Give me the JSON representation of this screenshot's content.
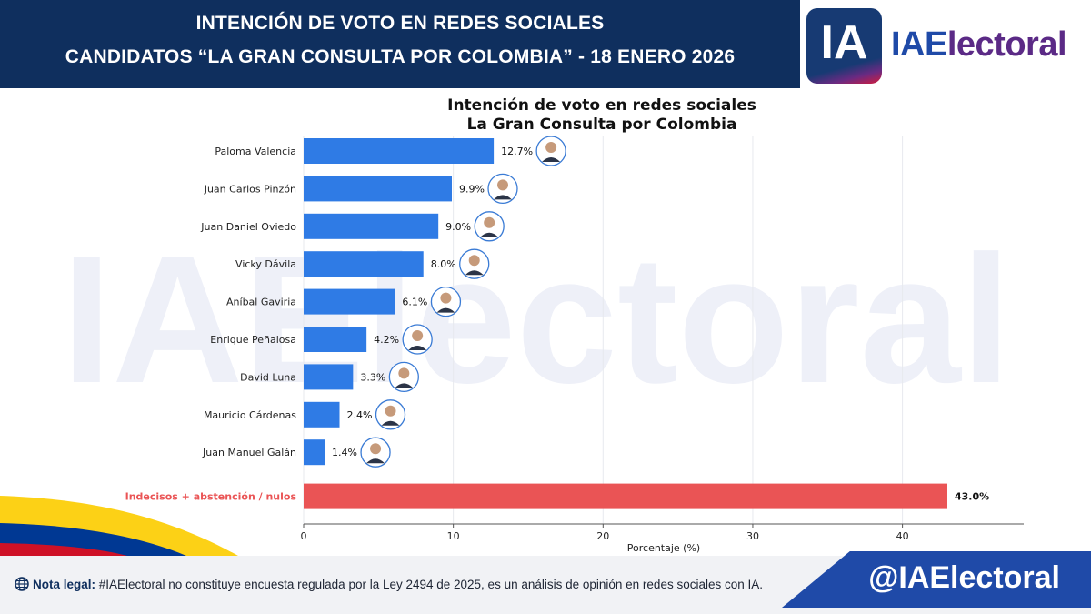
{
  "header": {
    "line1": "INTENCIÓN DE VOTO EN REDES SOCIALES",
    "line2": "CANDIDATOS “LA GRAN CONSULTA POR COLOMBIA” - 18 ENERO 2026"
  },
  "logo": {
    "mark": "IA",
    "text_a": "IAE",
    "text_b": "lectoral"
  },
  "watermark": "IAElectoral",
  "colors": {
    "navy": "#0f2f5e",
    "bar": "#2f7be5",
    "highlight": "#ea5455",
    "brand_blue": "#1f4aa8",
    "brand_purple": "#5b2a86"
  },
  "chart_data": {
    "type": "bar",
    "orientation": "horizontal",
    "title_line1": "Intención de voto en redes sociales",
    "title_line2": "La Gran Consulta por Colombia",
    "xlabel": "Porcentaje (%)",
    "ylabel": "",
    "xlim": [
      0,
      48
    ],
    "xticks": [
      0,
      10,
      20,
      30,
      40
    ],
    "grid": true,
    "categories": [
      "Paloma Valencia",
      "Juan Carlos Pinzón",
      "Juan Daniel Oviedo",
      "Vicky Dávila",
      "Aníbal Gaviria",
      "Enrique Peñalosa",
      "David Luna",
      "Mauricio Cárdenas",
      "Juan Manuel Galán",
      "Indecisos + abstención / nulos"
    ],
    "values": [
      12.7,
      9.9,
      9.0,
      8.0,
      6.1,
      4.2,
      3.3,
      2.4,
      1.4,
      43.0
    ],
    "value_labels": [
      "12.7%",
      "9.9%",
      "9.0%",
      "8.0%",
      "6.1%",
      "4.2%",
      "3.3%",
      "2.4%",
      "1.4%",
      "43.0%"
    ],
    "highlight_index": 9
  },
  "footer": {
    "legal_label": "Nota legal:",
    "legal_text": " #IAElectoral no constituye encuesta regulada por la Ley 2494 de 2025, es un análisis de opinión en redes sociales con IA.",
    "handle": "@IAElectoral"
  }
}
